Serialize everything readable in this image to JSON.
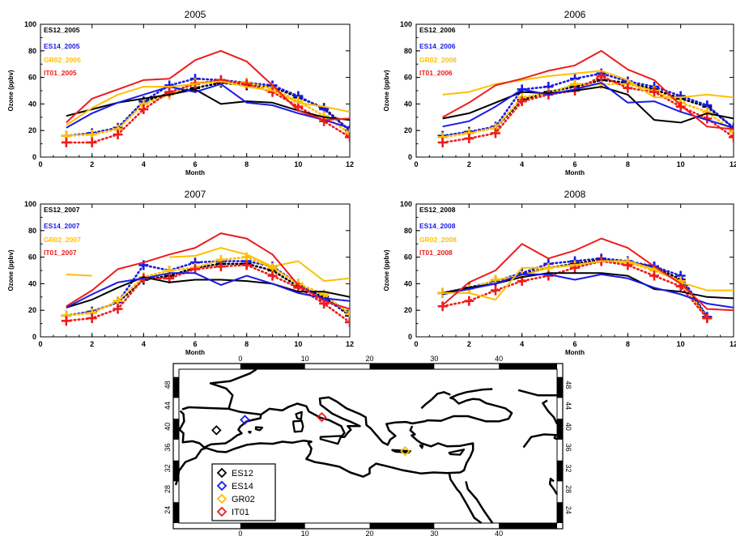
{
  "colors": {
    "ES12": "#000000",
    "ES14": "#1a1ae6",
    "GR02": "#ffbf00",
    "IT01": "#ee1c1c"
  },
  "chart_data": [
    {
      "type": "line",
      "title": "2005",
      "xlabel": "Month",
      "ylabel": "Ozone (ppbv)",
      "xlim": [
        0,
        12
      ],
      "ylim": [
        0,
        100
      ],
      "xticks": [
        "0",
        "2",
        "4",
        "6",
        "8",
        "10",
        "12"
      ],
      "yticks": [
        "0",
        "20",
        "40",
        "60",
        "80",
        "100"
      ],
      "legend": [
        "ES12_2005",
        "ES14_2005",
        "GR02_2005",
        "IT01_2005"
      ],
      "series": [
        {
          "name": "ES12",
          "style": "model",
          "x": [
            1,
            2,
            3,
            4,
            5,
            6,
            7,
            8,
            9,
            10,
            11,
            12
          ],
          "y": [
            31,
            36,
            41,
            44,
            47,
            51,
            40,
            42,
            41,
            35,
            30,
            28
          ]
        },
        {
          "name": "ES14",
          "style": "model",
          "x": [
            1,
            2,
            3,
            4,
            5,
            6,
            7,
            8,
            9,
            10,
            11,
            12
          ],
          "y": [
            22,
            33,
            41,
            47,
            53,
            49,
            55,
            41,
            39,
            33,
            28,
            22
          ]
        },
        {
          "name": "GR02",
          "style": "model",
          "x": [
            1,
            2,
            3,
            4,
            5,
            6,
            7,
            8,
            9,
            10,
            11,
            12
          ],
          "y": [
            24,
            37,
            47,
            53,
            53,
            55,
            57,
            53,
            50,
            41,
            38,
            34
          ]
        },
        {
          "name": "IT01",
          "style": "model",
          "x": [
            1,
            2,
            3,
            4,
            5,
            6,
            7,
            8,
            9,
            10,
            11,
            12
          ],
          "y": [
            26,
            44,
            51,
            58,
            59,
            73,
            80,
            72,
            54,
            35,
            28,
            29
          ]
        },
        {
          "name": "ES12",
          "style": "obs",
          "x": [
            1,
            2,
            3,
            4,
            5,
            6,
            7,
            8,
            9,
            10,
            11,
            12
          ],
          "y": [
            16,
            18,
            22,
            42,
            48,
            52,
            56,
            54,
            53,
            45,
            37,
            20
          ]
        },
        {
          "name": "ES14",
          "style": "obs",
          "x": [
            1,
            2,
            3,
            4,
            5,
            6,
            7,
            8,
            9,
            10,
            11,
            12
          ],
          "y": [
            16,
            18,
            22,
            42,
            54,
            59,
            58,
            56,
            54,
            46,
            36,
            20
          ]
        },
        {
          "name": "GR02",
          "style": "obs",
          "x": [
            1,
            2,
            3,
            4,
            5,
            6,
            7,
            8,
            9,
            10,
            11,
            12
          ],
          "y": [
            16,
            17,
            21,
            40,
            47,
            56,
            57,
            56,
            52,
            42,
            31,
            18
          ]
        },
        {
          "name": "IT01",
          "style": "obs",
          "x": [
            1,
            2,
            3,
            4,
            5,
            6,
            7,
            8,
            9,
            10,
            11,
            12
          ],
          "y": [
            11,
            11,
            17,
            36,
            49,
            55,
            58,
            55,
            49,
            38,
            27,
            15
          ]
        }
      ]
    },
    {
      "type": "line",
      "title": "2006",
      "xlabel": "Month",
      "ylabel": "Ozone (ppbv)",
      "xlim": [
        0,
        12
      ],
      "ylim": [
        0,
        100
      ],
      "xticks": [
        "0",
        "2",
        "4",
        "6",
        "8",
        "10",
        "12"
      ],
      "yticks": [
        "0",
        "20",
        "40",
        "60",
        "80",
        "100"
      ],
      "legend": [
        "ES12_2006",
        "ES14_2006",
        "GR02_2006",
        "IT01_2006"
      ],
      "series": [
        {
          "name": "ES12",
          "style": "model",
          "x": [
            1,
            2,
            3,
            4,
            5,
            6,
            7,
            8,
            9,
            10,
            11,
            12
          ],
          "y": [
            29,
            33,
            41,
            49,
            48,
            50,
            53,
            47,
            28,
            26,
            33,
            29
          ]
        },
        {
          "name": "ES14",
          "style": "model",
          "x": [
            1,
            2,
            3,
            4,
            5,
            6,
            7,
            8,
            9,
            10,
            11,
            12
          ],
          "y": [
            23,
            27,
            38,
            51,
            47,
            51,
            56,
            41,
            42,
            34,
            28,
            22
          ]
        },
        {
          "name": "GR02",
          "style": "model",
          "x": [
            1,
            2,
            3,
            4,
            5,
            6,
            7,
            8,
            9,
            10,
            11,
            12
          ],
          "y": [
            47,
            49,
            55,
            58,
            61,
            63,
            65,
            58,
            45,
            45,
            47,
            45
          ]
        },
        {
          "name": "IT01",
          "style": "model",
          "x": [
            1,
            2,
            3,
            4,
            5,
            6,
            7,
            8,
            9,
            10,
            11,
            12
          ],
          "y": [
            30,
            41,
            54,
            59,
            65,
            69,
            80,
            66,
            58,
            39,
            23,
            21
          ]
        },
        {
          "name": "ES12",
          "style": "obs",
          "x": [
            1,
            2,
            3,
            4,
            5,
            6,
            7,
            8,
            9,
            10,
            11,
            12
          ],
          "y": [
            16,
            19,
            22,
            43,
            49,
            53,
            58,
            56,
            51,
            44,
            38,
            22
          ]
        },
        {
          "name": "ES14",
          "style": "obs",
          "x": [
            1,
            2,
            3,
            4,
            5,
            6,
            7,
            8,
            9,
            10,
            11,
            12
          ],
          "y": [
            16,
            19,
            23,
            51,
            53,
            59,
            63,
            57,
            53,
            46,
            39,
            22
          ]
        },
        {
          "name": "GR02",
          "style": "obs",
          "x": [
            1,
            2,
            3,
            4,
            5,
            6,
            7,
            8,
            9,
            10,
            11,
            12
          ],
          "y": [
            15,
            18,
            22,
            45,
            48,
            55,
            55,
            55,
            50,
            41,
            34,
            19
          ]
        },
        {
          "name": "IT01",
          "style": "obs",
          "x": [
            1,
            2,
            3,
            4,
            5,
            6,
            7,
            8,
            9,
            10,
            11,
            12
          ],
          "y": [
            11,
            14,
            18,
            42,
            47,
            50,
            61,
            52,
            49,
            38,
            29,
            15
          ]
        }
      ]
    },
    {
      "type": "line",
      "title": "2007",
      "xlabel": "Month",
      "ylabel": "Ozone (ppbv)",
      "xlim": [
        0,
        12
      ],
      "ylim": [
        0,
        100
      ],
      "xticks": [
        "0",
        "2",
        "4",
        "6",
        "8",
        "10",
        "12"
      ],
      "yticks": [
        "0",
        "20",
        "40",
        "60",
        "80",
        "100"
      ],
      "legend": [
        "ES12_2007",
        "ES14_2007",
        "GR02_2007",
        "IT01_2007"
      ],
      "series": [
        {
          "name": "ES12",
          "style": "model",
          "x": [
            1,
            2,
            3,
            4,
            5,
            6,
            7,
            8,
            9,
            10,
            11,
            12
          ],
          "y": [
            22,
            28,
            37,
            45,
            41,
            43,
            43,
            42,
            40,
            34,
            34,
            30
          ]
        },
        {
          "name": "ES14",
          "style": "model",
          "x": [
            1,
            2,
            3,
            4,
            5,
            6,
            7,
            8,
            9,
            10,
            11,
            12
          ],
          "y": [
            22,
            32,
            41,
            44,
            48,
            48,
            39,
            46,
            40,
            33,
            29,
            27
          ]
        },
        {
          "name": "GR02",
          "style": "model",
          "x": [
            1,
            2,
            null,
            null,
            5,
            6,
            7,
            8,
            9,
            10,
            11,
            12
          ],
          "y": [
            47,
            46,
            null,
            null,
            60,
            61,
            67,
            62,
            53,
            57,
            42,
            44
          ]
        },
        {
          "name": "IT01",
          "style": "model",
          "x": [
            1,
            2,
            3,
            4,
            5,
            6,
            7,
            8,
            9,
            10,
            11,
            12
          ],
          "y": [
            23,
            35,
            51,
            56,
            62,
            67,
            78,
            74,
            62,
            39,
            27,
            21
          ]
        },
        {
          "name": "ES12",
          "style": "obs",
          "x": [
            1,
            2,
            3,
            4,
            5,
            6,
            7,
            8,
            9,
            10,
            11,
            12
          ],
          "y": [
            16,
            19,
            26,
            43,
            46,
            52,
            55,
            55,
            50,
            38,
            30,
            16
          ]
        },
        {
          "name": "ES14",
          "style": "obs",
          "x": [
            1,
            2,
            3,
            4,
            5,
            6,
            7,
            8,
            9,
            10,
            11,
            12
          ],
          "y": [
            16,
            19,
            26,
            54,
            50,
            56,
            57,
            57,
            53,
            40,
            28,
            18
          ]
        },
        {
          "name": "GR02",
          "style": "obs",
          "x": [
            1,
            2,
            3,
            4,
            5,
            6,
            7,
            8,
            9,
            10,
            11,
            12
          ],
          "y": [
            16,
            18,
            27,
            45,
            50,
            52,
            58,
            60,
            52,
            40,
            32,
            17
          ]
        },
        {
          "name": "IT01",
          "style": "obs",
          "x": [
            1,
            2,
            3,
            4,
            5,
            6,
            7,
            8,
            9,
            10,
            11,
            12
          ],
          "y": [
            12,
            14,
            21,
            44,
            44,
            51,
            53,
            54,
            46,
            37,
            25,
            11
          ]
        }
      ]
    },
    {
      "type": "line",
      "title": "2008",
      "xlabel": "Month",
      "ylabel": "Ozone (ppbv)",
      "xlim": [
        0,
        12
      ],
      "ylim": [
        0,
        100
      ],
      "xticks": [
        "0",
        "2",
        "4",
        "6",
        "8",
        "10",
        "12"
      ],
      "yticks": [
        "0",
        "20",
        "40",
        "60",
        "80",
        "100"
      ],
      "legend": [
        "ES12_2008",
        "ES14_2008",
        "GR02_2008",
        "IT01_2008"
      ],
      "series": [
        {
          "name": "ES12",
          "style": "model",
          "x": [
            1,
            2,
            3,
            4,
            5,
            6,
            7,
            8,
            9,
            10,
            11,
            12
          ],
          "y": [
            33,
            37,
            40,
            45,
            48,
            48,
            48,
            46,
            36,
            34,
            30,
            29
          ]
        },
        {
          "name": "ES14",
          "style": "model",
          "x": [
            1,
            2,
            3,
            4,
            5,
            6,
            7,
            8,
            9,
            10,
            11,
            12
          ],
          "y": [
            32,
            36,
            40,
            47,
            47,
            43,
            47,
            44,
            37,
            32,
            25,
            22
          ]
        },
        {
          "name": "GR02",
          "style": "model",
          "x": [
            1,
            2,
            3,
            4,
            5,
            6,
            7,
            8,
            9,
            10,
            11,
            12
          ],
          "y": [
            33,
            33,
            28,
            52,
            52,
            54,
            57,
            57,
            51,
            41,
            35,
            35
          ]
        },
        {
          "name": "IT01",
          "style": "model",
          "x": [
            1,
            2,
            3,
            4,
            5,
            6,
            7,
            8,
            9,
            10,
            11,
            12
          ],
          "y": [
            24,
            41,
            50,
            70,
            59,
            65,
            74,
            67,
            53,
            40,
            21,
            20
          ]
        },
        {
          "name": "ES12",
          "style": "obs",
          "x": [
            1,
            2,
            3,
            4,
            5,
            6,
            7,
            8,
            9,
            10,
            11
          ],
          "y": [
            33,
            37,
            42,
            47,
            52,
            55,
            58,
            56,
            53,
            43,
            15
          ]
        },
        {
          "name": "ES14",
          "style": "obs",
          "x": [
            1,
            2,
            3,
            4,
            5,
            6,
            7,
            8,
            9,
            10,
            11
          ],
          "y": [
            33,
            37,
            42,
            48,
            55,
            57,
            59,
            57,
            53,
            46,
            15
          ]
        },
        {
          "name": "GR02",
          "style": "obs",
          "x": [
            1,
            2,
            3,
            4,
            5,
            6,
            7,
            8,
            9,
            10,
            11
          ],
          "y": [
            33,
            36,
            43,
            46,
            52,
            54,
            57,
            56,
            50,
            42,
            14
          ]
        },
        {
          "name": "IT01",
          "style": "obs",
          "x": [
            1,
            2,
            3,
            4,
            5,
            6,
            7,
            8,
            9,
            10,
            11
          ],
          "y": [
            23,
            27,
            35,
            42,
            46,
            52,
            57,
            54,
            46,
            38,
            14
          ]
        }
      ]
    }
  ],
  "map": {
    "xticks": [
      "0",
      "10",
      "20",
      "30",
      "40"
    ],
    "yticks": [
      "24",
      "28",
      "32",
      "36",
      "40",
      "44",
      "48"
    ],
    "stations": [
      {
        "name": "ES12",
        "lon": -3.7,
        "lat": 39.3
      },
      {
        "name": "ES14",
        "lon": 0.7,
        "lat": 41.3
      },
      {
        "name": "GR02",
        "lon": 25.5,
        "lat": 35.3
      },
      {
        "name": "IT01",
        "lon": 12.6,
        "lat": 41.8
      }
    ],
    "legend": [
      "ES12",
      "ES14",
      "GR02",
      "IT01"
    ]
  }
}
